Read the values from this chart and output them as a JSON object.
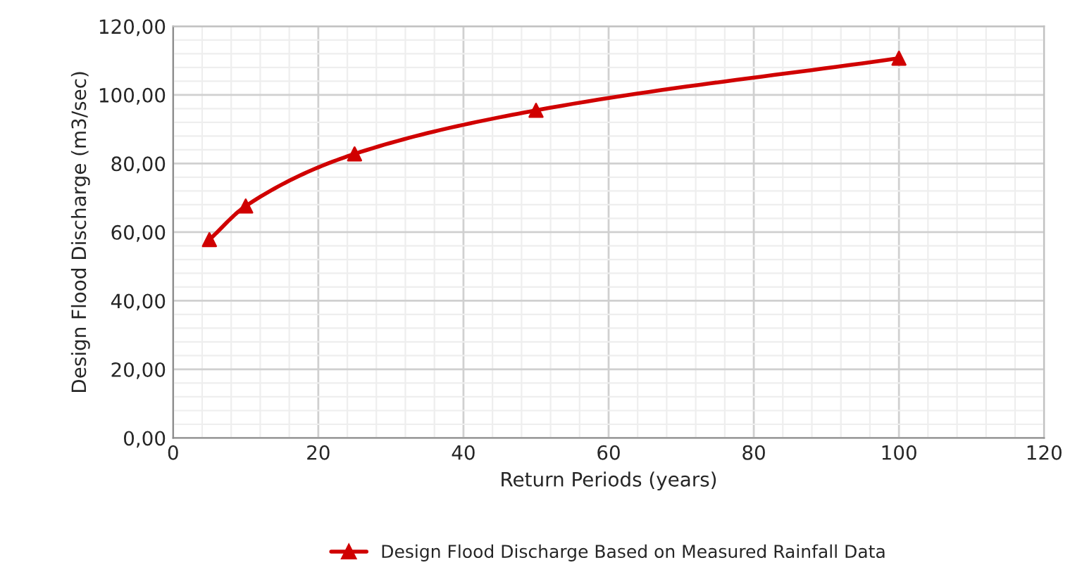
{
  "chart_data": {
    "type": "line",
    "xlabel": "Return Periods (years)",
    "ylabel": "Design Flood Discharge (m3/sec)",
    "series": [
      {
        "name": "Design Flood Discharge Based on Measured Rainfall Data",
        "color": "#d00000",
        "x": [
          5,
          10,
          25,
          50,
          100
        ],
        "values": [
          57.8,
          67.6,
          82.8,
          95.5,
          110.7
        ]
      }
    ],
    "xlim": [
      0,
      120
    ],
    "xticks": [
      0,
      20,
      40,
      60,
      80,
      100,
      120
    ],
    "ylim": [
      0,
      120
    ],
    "yticks": [
      {
        "value": 0,
        "label": "0,00"
      },
      {
        "value": 20,
        "label": "20,00"
      },
      {
        "value": 40,
        "label": "40,00"
      },
      {
        "value": 60,
        "label": "60,00"
      },
      {
        "value": 80,
        "label": "80,00"
      },
      {
        "value": 100,
        "label": "100,00"
      },
      {
        "value": 120,
        "label": "120,00"
      }
    ],
    "grid": true,
    "legend": "bottom",
    "marker": "triangle",
    "line_style": "solid"
  }
}
